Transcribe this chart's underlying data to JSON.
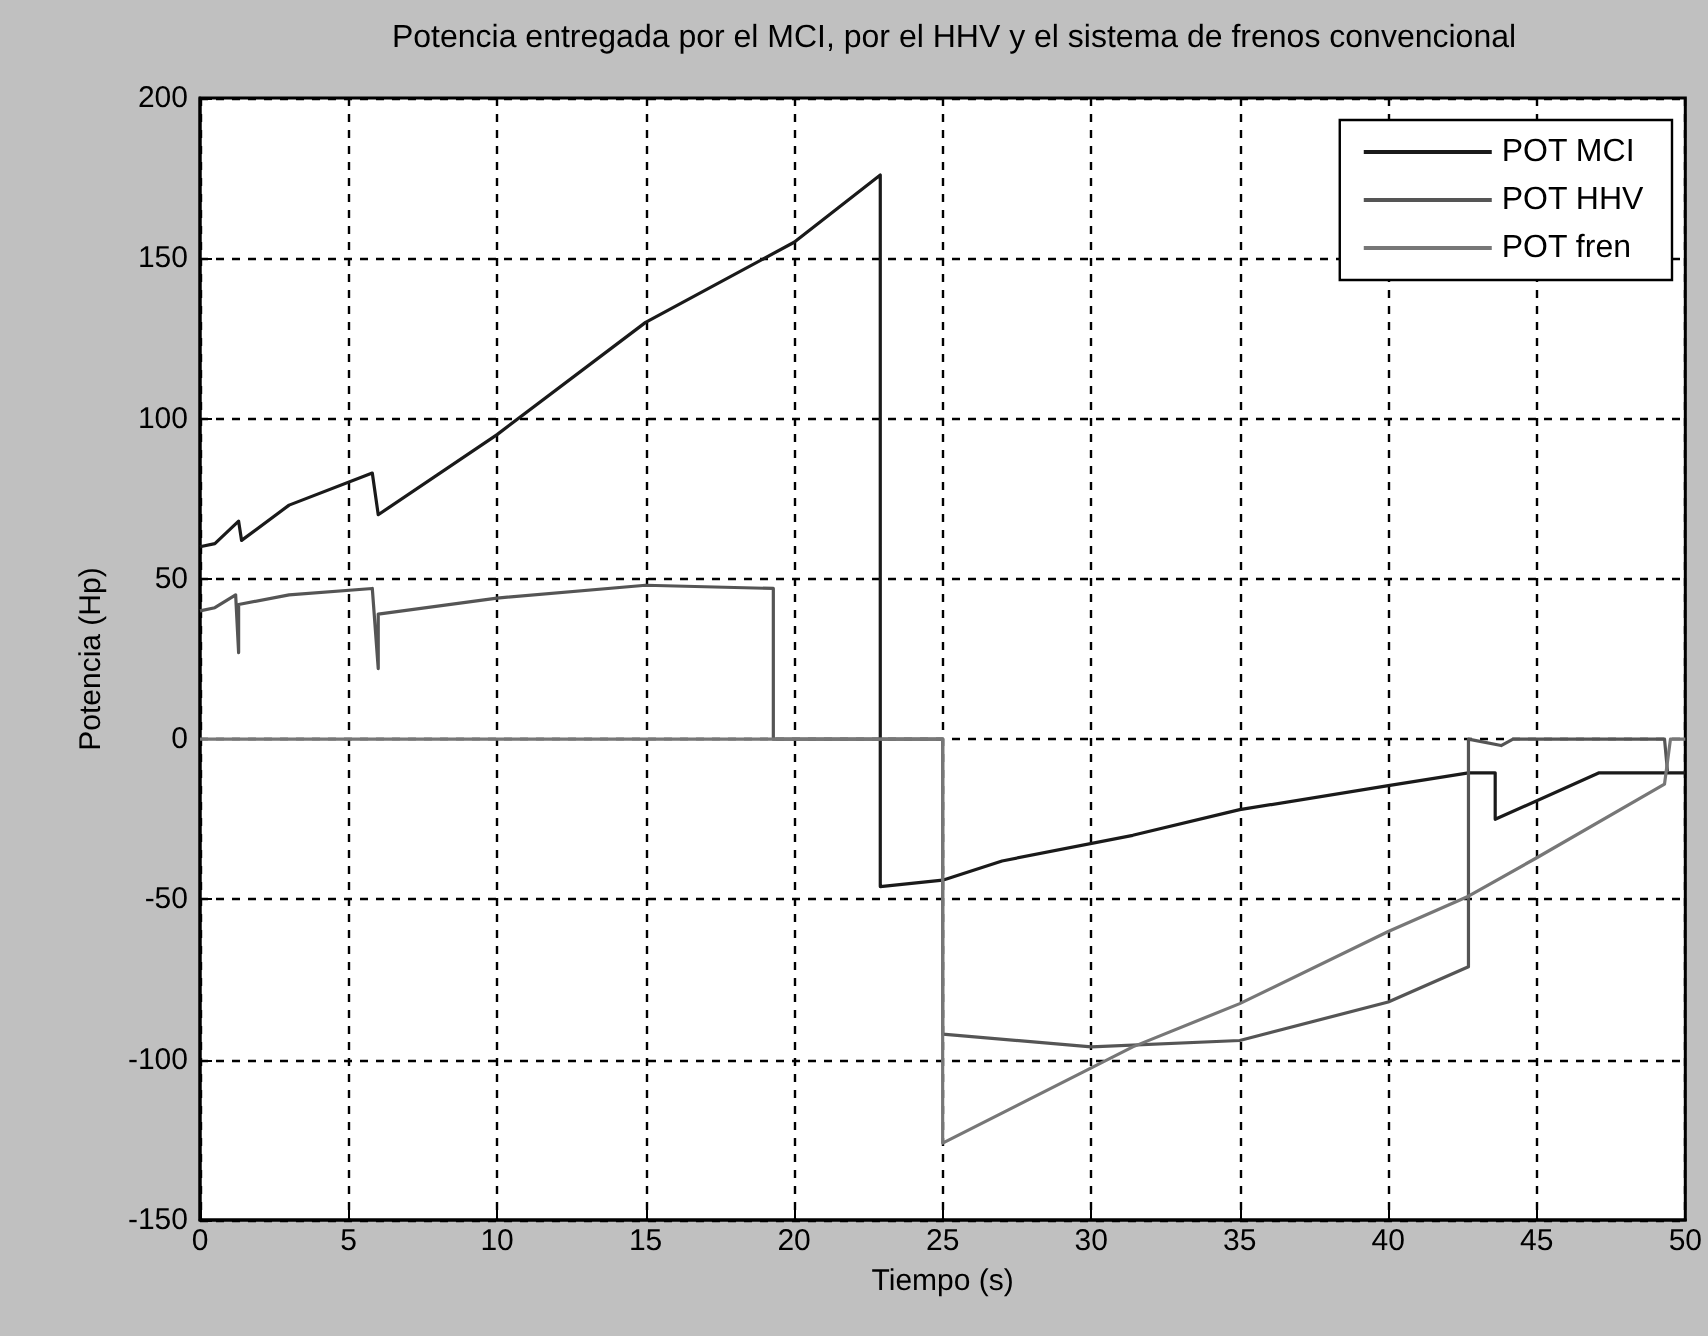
{
  "chart_data": {
    "type": "line",
    "title": "Potencia entregada por el MCI, por el HHV y el sistema de frenos convencional",
    "xlabel": "Tiempo (s)",
    "ylabel": "Potencia (Hp)",
    "xlim": [
      0,
      50
    ],
    "xticks": [
      0,
      5,
      10,
      15,
      20,
      25,
      30,
      35,
      40,
      45,
      50
    ],
    "ylim": [
      -150,
      200
    ],
    "yticks": [
      -150,
      -100,
      -50,
      0,
      50,
      100,
      150,
      200
    ],
    "grid": true,
    "legend": "top right",
    "line_style": "solid",
    "marker": "none",
    "series": [
      {
        "name": "POT MCI",
        "color": "#1a1a1a",
        "x": [
          0,
          0.5,
          1.3,
          1.4,
          3,
          5.8,
          6,
          10,
          15,
          20,
          22.9,
          22.9,
          25,
          27,
          31.4,
          35,
          40,
          42.7,
          43.6,
          43.6,
          47.1,
          50
        ],
        "values": [
          60,
          61,
          68,
          62,
          73,
          83,
          70,
          95,
          130,
          155,
          176,
          -46,
          -44,
          -38,
          -30,
          -22,
          -14.5,
          -10.5,
          -10.5,
          -25,
          -10.5,
          -10.5
        ]
      },
      {
        "name": "POT HHV",
        "color": "#555555",
        "x": [
          0,
          0.5,
          1.2,
          1.3,
          1.3,
          3,
          5.8,
          6,
          6,
          10,
          15,
          19.3,
          19.3,
          25,
          25,
          30,
          35,
          40,
          42.7,
          42.7,
          43.8,
          44.2,
          49.3,
          49.4
        ],
        "values": [
          40,
          41,
          45,
          27,
          42,
          45,
          47,
          22,
          39,
          44,
          48,
          47,
          0,
          0,
          -92,
          -96,
          -94,
          -82,
          -71,
          0,
          -2,
          0,
          0,
          -10
        ]
      },
      {
        "name": "POT fren",
        "color": "#777777",
        "x": [
          0,
          25,
          25,
          31.4,
          35,
          40,
          42.7,
          45,
          49.3,
          49.5,
          50
        ],
        "values": [
          0,
          0,
          -126,
          -96,
          -82.5,
          -60,
          -49,
          -37,
          -14,
          0,
          0
        ]
      }
    ]
  }
}
